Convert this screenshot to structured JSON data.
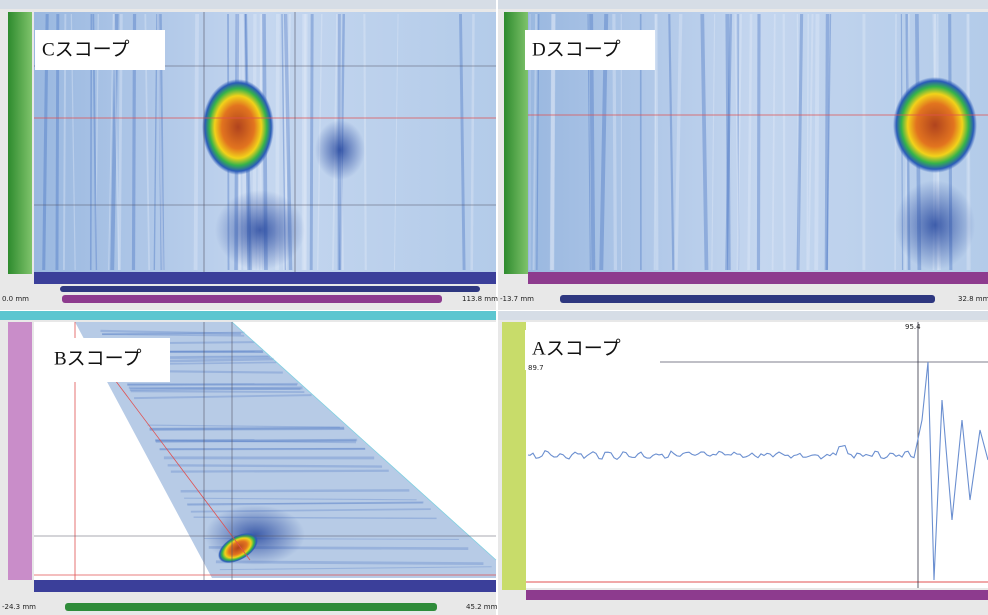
{
  "panels": [
    {
      "label": "Cスコープ",
      "range_start": "0.0 mm",
      "range_end": "113.8 mm"
    },
    {
      "label": "Dスコープ",
      "range_start": "-13.7 mm",
      "range_end": "32.8 mm"
    },
    {
      "label": "Bスコープ",
      "range_start": "-24.3 mm",
      "range_end": "45.2 mm"
    },
    {
      "label": "Aスコープ",
      "cursor": "95.4",
      "gate": "89.7"
    }
  ]
}
